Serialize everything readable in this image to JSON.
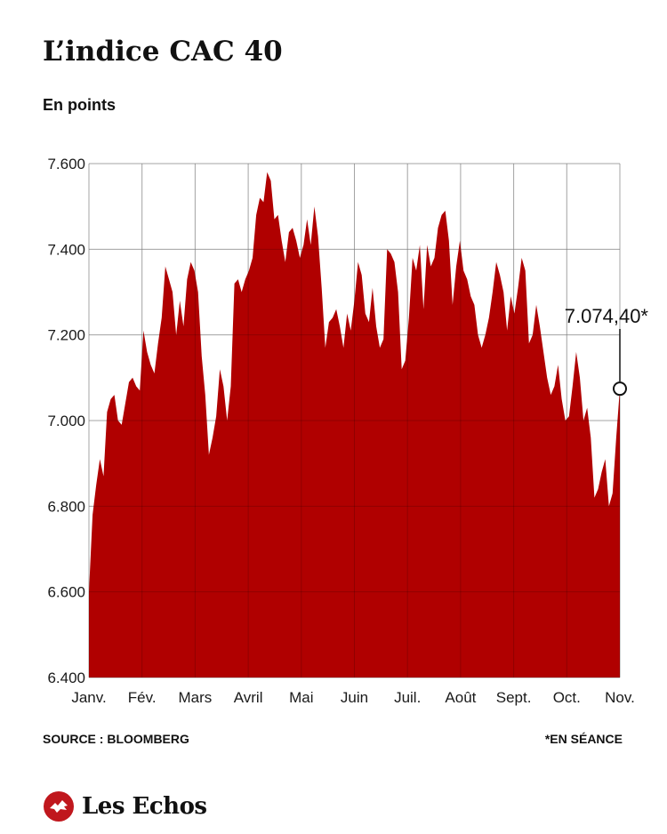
{
  "header": {
    "title": "L’indice CAC 40",
    "subtitle": "En points"
  },
  "footer": {
    "source": "SOURCE : BLOOMBERG",
    "note": "*EN SÉANCE",
    "brand": "Les Echos"
  },
  "colors": {
    "area": "#b00000",
    "grid": "#c8c8c8",
    "text": "#1a1a1a"
  },
  "chart_data": {
    "type": "area",
    "title": "L’indice CAC 40",
    "subtitle": "En points",
    "ylim": [
      6400,
      7600
    ],
    "y_ticks": [
      6400,
      6600,
      6800,
      7000,
      7200,
      7400,
      7600
    ],
    "y_tick_labels": [
      "6.400",
      "6.600",
      "6.800",
      "7.000",
      "7.200",
      "7.400",
      "7.600"
    ],
    "x_ticks": [
      "Janv.",
      "Fév.",
      "Mars",
      "Avril",
      "Mai",
      "Juin",
      "Juil.",
      "Août",
      "Sept.",
      "Oct.",
      "Nov."
    ],
    "grid": true,
    "last_value_label": "7.074,40*",
    "series": [
      {
        "values": [
          6600,
          6780,
          6850,
          6910,
          6870,
          7020,
          7050,
          7060,
          7000,
          6990,
          7040,
          7090,
          7100,
          7080,
          7070,
          7210,
          7160,
          7130,
          7110,
          7180,
          7240,
          7360,
          7330,
          7300,
          7200,
          7280,
          7220,
          7330,
          7370,
          7350,
          7300,
          7150,
          7060,
          6920,
          6960,
          7010,
          7120,
          7080,
          7000,
          7080,
          7320,
          7330,
          7300,
          7330,
          7350,
          7380,
          7480,
          7520,
          7510,
          7580,
          7560,
          7470,
          7480,
          7420,
          7370,
          7440,
          7450,
          7420,
          7380,
          7410,
          7470,
          7410,
          7500,
          7430,
          7310,
          7170,
          7230,
          7240,
          7260,
          7220,
          7170,
          7250,
          7210,
          7280,
          7370,
          7340,
          7250,
          7230,
          7310,
          7220,
          7170,
          7190,
          7400,
          7390,
          7370,
          7300,
          7120,
          7140,
          7240,
          7380,
          7350,
          7410,
          7260,
          7410,
          7360,
          7380,
          7450,
          7480,
          7490,
          7420,
          7270,
          7360,
          7420,
          7350,
          7330,
          7290,
          7270,
          7200,
          7170,
          7200,
          7240,
          7300,
          7370,
          7340,
          7300,
          7210,
          7290,
          7250,
          7310,
          7380,
          7350,
          7180,
          7200,
          7270,
          7220,
          7160,
          7100,
          7060,
          7080,
          7130,
          7050,
          7000,
          7010,
          7080,
          7160,
          7100,
          7000,
          7030,
          6960,
          6820,
          6840,
          6880,
          6910,
          6800,
          6830,
          6960,
          7074.4
        ]
      }
    ]
  }
}
